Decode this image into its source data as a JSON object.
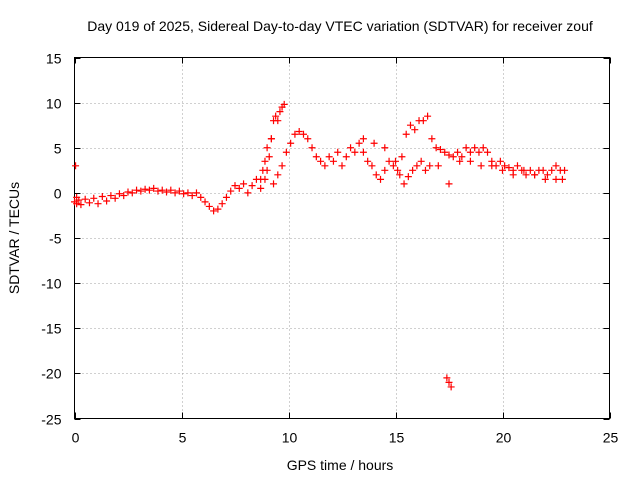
{
  "chart_data": {
    "type": "scatter",
    "title": "Day 019 of 2025, Sidereal Day-to-day VTEC variation (SDTVAR) for receiver zouf",
    "xlabel": "GPS time / hours",
    "ylabel": "SDTVAR / TECUs",
    "xlim": [
      0,
      25
    ],
    "ylim": [
      -25,
      15
    ],
    "x_ticks": [
      0,
      5,
      10,
      15,
      20,
      25
    ],
    "y_ticks": [
      -25,
      -20,
      -15,
      -10,
      -5,
      0,
      5,
      10,
      15
    ],
    "x_tick_labels": [
      "0",
      "5",
      "10",
      "15",
      "20",
      "25"
    ],
    "y_tick_labels": [
      "-25",
      "-20",
      "-15",
      "-10",
      "-5",
      "0",
      "5",
      "10",
      "15"
    ],
    "marker": "+",
    "grid": true,
    "color": "#ff0000",
    "series": [
      {
        "name": "SDTVAR",
        "x": [
          0.05,
          0.1,
          0.0,
          0.1,
          0.2,
          0.3,
          0.5,
          0.7,
          0.9,
          1.1,
          1.3,
          1.5,
          1.7,
          1.9,
          2.1,
          2.3,
          2.5,
          2.7,
          2.9,
          3.1,
          3.3,
          3.5,
          3.7,
          3.9,
          4.1,
          4.3,
          4.5,
          4.7,
          4.9,
          5.1,
          5.3,
          5.5,
          5.7,
          5.9,
          6.1,
          6.3,
          6.5,
          6.7,
          6.9,
          7.1,
          7.3,
          7.5,
          7.7,
          7.9,
          8.1,
          8.3,
          8.5,
          8.7,
          8.9,
          9.0,
          9.1,
          9.2,
          9.3,
          9.4,
          9.5,
          9.6,
          9.7,
          9.8,
          9.2,
          9.0,
          8.9,
          8.8,
          8.7,
          9.3,
          9.5,
          9.7,
          9.9,
          10.1,
          10.3,
          10.5,
          10.7,
          10.9,
          11.1,
          11.3,
          11.5,
          11.7,
          11.9,
          12.1,
          12.3,
          12.5,
          12.7,
          12.9,
          13.1,
          13.3,
          13.5,
          13.7,
          13.9,
          14.1,
          14.3,
          14.5,
          14.7,
          14.9,
          15.1,
          15.3,
          15.5,
          15.7,
          15.9,
          16.1,
          16.3,
          16.5,
          16.7,
          16.9,
          17.1,
          17.3,
          17.5,
          17.7,
          17.9,
          18.1,
          18.3,
          18.5,
          18.7,
          18.9,
          19.1,
          19.3,
          19.5,
          19.7,
          19.9,
          20.1,
          20.3,
          20.5,
          20.7,
          20.9,
          21.1,
          21.3,
          21.5,
          21.7,
          21.9,
          22.1,
          22.3,
          22.5,
          22.7,
          22.9,
          13.5,
          14.0,
          14.5,
          15.0,
          15.2,
          15.4,
          15.6,
          15.8,
          16.0,
          16.2,
          16.4,
          16.6,
          17.0,
          17.5,
          18.0,
          18.5,
          19.0,
          19.5,
          20.0,
          20.5,
          21.0,
          21.5,
          22.0,
          22.5,
          22.8,
          17.4,
          17.5,
          17.6
        ],
        "y": [
          3.0,
          -0.5,
          -1.0,
          -1.2,
          -0.8,
          -1.3,
          -0.7,
          -1.1,
          -0.6,
          -1.2,
          -0.4,
          -0.9,
          -0.3,
          -0.6,
          -0.1,
          -0.3,
          0.1,
          0.0,
          0.3,
          0.2,
          0.4,
          0.3,
          0.5,
          0.2,
          0.3,
          0.1,
          0.3,
          0.0,
          0.2,
          -0.1,
          0.0,
          -0.3,
          0.0,
          -0.5,
          -1.0,
          -1.5,
          -2.0,
          -1.8,
          -1.2,
          -0.5,
          0.2,
          0.8,
          0.5,
          1.0,
          0.0,
          0.8,
          1.5,
          0.5,
          1.5,
          2.5,
          4.0,
          6.0,
          8.0,
          8.5,
          8.0,
          9.0,
          9.5,
          9.8,
          6.0,
          5.0,
          3.5,
          2.5,
          1.5,
          1.0,
          2.0,
          3.0,
          4.5,
          5.5,
          6.5,
          6.8,
          6.5,
          6.0,
          5.0,
          4.0,
          3.5,
          3.0,
          4.0,
          3.5,
          4.5,
          3.0,
          4.0,
          5.0,
          4.5,
          5.5,
          4.5,
          3.5,
          3.0,
          2.0,
          1.5,
          2.5,
          3.5,
          3.0,
          2.5,
          4.0,
          6.5,
          7.5,
          7.0,
          8.0,
          8.0,
          8.5,
          6.0,
          5.0,
          4.8,
          4.5,
          4.2,
          4.0,
          4.5,
          4.0,
          5.0,
          4.5,
          5.0,
          4.5,
          5.0,
          4.5,
          3.5,
          3.0,
          3.5,
          3.0,
          2.8,
          2.5,
          3.0,
          2.5,
          2.0,
          2.5,
          2.0,
          2.5,
          2.5,
          2.0,
          2.5,
          3.0,
          2.5,
          2.5,
          6.0,
          5.5,
          5.0,
          3.5,
          2.0,
          1.0,
          1.8,
          2.5,
          3.0,
          3.5,
          2.5,
          3.0,
          3.0,
          1.0,
          3.5,
          3.5,
          3.0,
          3.0,
          2.5,
          2.0,
          2.5,
          2.0,
          1.5,
          1.5,
          1.5,
          -20.5,
          -21.0,
          -21.5
        ]
      }
    ]
  }
}
